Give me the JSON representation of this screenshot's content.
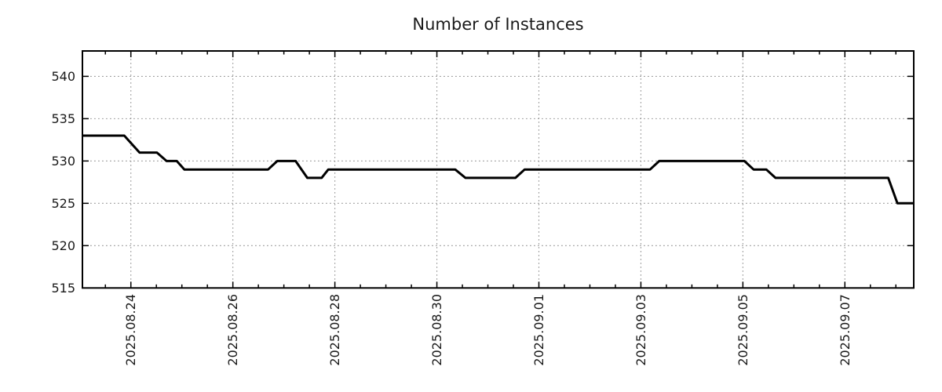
{
  "chart_data": {
    "type": "line",
    "title": "Number of Instances",
    "x_axis": {
      "unit": "days since 2025-08-23 00:00",
      "xlim": [
        0.05,
        16.35
      ],
      "minor_tick_step_days": 0.5,
      "major_ticks": [
        {
          "pos": 1,
          "label": "2025.08.24"
        },
        {
          "pos": 3,
          "label": "2025.08.26"
        },
        {
          "pos": 5,
          "label": "2025.08.28"
        },
        {
          "pos": 7,
          "label": "2025.08.30"
        },
        {
          "pos": 9,
          "label": "2025.09.01"
        },
        {
          "pos": 11,
          "label": "2025.09.03"
        },
        {
          "pos": 13,
          "label": "2025.09.05"
        },
        {
          "pos": 15,
          "label": "2025.09.07"
        }
      ]
    },
    "y_axis": {
      "ylim": [
        515,
        543
      ],
      "ticks": [
        515,
        520,
        525,
        530,
        535,
        540
      ]
    },
    "grid": {
      "style": "dotted",
      "color": "#999999",
      "vertical_at_major_x": true,
      "horizontal_at_y_ticks": true
    },
    "legend": null,
    "series": [
      {
        "name": "instances",
        "color": "#000000",
        "line_width": 3,
        "points": [
          [
            0.05,
            533
          ],
          [
            0.87,
            533
          ],
          [
            1.17,
            531
          ],
          [
            1.51,
            531
          ],
          [
            1.7,
            530
          ],
          [
            1.9,
            530
          ],
          [
            2.05,
            529
          ],
          [
            3.69,
            529
          ],
          [
            3.87,
            530
          ],
          [
            4.23,
            530
          ],
          [
            4.46,
            528
          ],
          [
            4.74,
            528
          ],
          [
            4.87,
            529
          ],
          [
            7.36,
            529
          ],
          [
            7.56,
            528
          ],
          [
            8.54,
            528
          ],
          [
            8.72,
            529
          ],
          [
            11.18,
            529
          ],
          [
            11.36,
            530
          ],
          [
            13.03,
            530
          ],
          [
            13.21,
            529
          ],
          [
            13.46,
            529
          ],
          [
            13.64,
            528
          ],
          [
            15.85,
            528
          ],
          [
            16.03,
            525
          ],
          [
            16.35,
            525
          ]
        ]
      }
    ],
    "colors": {
      "axis": "#000000",
      "text": "#1a1a1a",
      "background": "#ffffff"
    }
  }
}
